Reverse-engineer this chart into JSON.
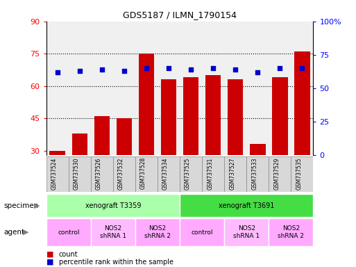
{
  "title": "GDS5187 / ILMN_1790154",
  "samples": [
    "GSM737524",
    "GSM737530",
    "GSM737526",
    "GSM737532",
    "GSM737528",
    "GSM737534",
    "GSM737525",
    "GSM737531",
    "GSM737527",
    "GSM737533",
    "GSM737529",
    "GSM737535"
  ],
  "counts": [
    30,
    38,
    46,
    45,
    75,
    63,
    64,
    65,
    63,
    33,
    64,
    76
  ],
  "percentiles": [
    62,
    63,
    64,
    63,
    65,
    65,
    64,
    65,
    64,
    62,
    65,
    65
  ],
  "ylim_left": [
    28,
    90
  ],
  "ylim_right": [
    0,
    100
  ],
  "yticks_left": [
    30,
    45,
    60,
    75,
    90
  ],
  "yticks_right": [
    0,
    25,
    50,
    75,
    100
  ],
  "yticklabels_right": [
    "0",
    "25",
    "50",
    "75",
    "100%"
  ],
  "bar_color": "#cc0000",
  "dot_color": "#0000cc",
  "plot_bg": "#f0f0f0",
  "specimen_groups": [
    {
      "label": "xenograft T3359",
      "start": 0,
      "end": 6,
      "color": "#aaffaa"
    },
    {
      "label": "xenograft T3691",
      "start": 6,
      "end": 12,
      "color": "#44dd44"
    }
  ],
  "agent_groups": [
    {
      "label": "control",
      "start": 0,
      "end": 2,
      "color": "#ffaaff"
    },
    {
      "label": "NOS2\nshRNA 1",
      "start": 2,
      "end": 4,
      "color": "#ffbbff"
    },
    {
      "label": "NOS2\nshRNA 2",
      "start": 4,
      "end": 6,
      "color": "#ffaaff"
    },
    {
      "label": "control",
      "start": 6,
      "end": 8,
      "color": "#ffaaff"
    },
    {
      "label": "NOS2\nshRNA 1",
      "start": 8,
      "end": 10,
      "color": "#ffbbff"
    },
    {
      "label": "NOS2\nshRNA 2",
      "start": 10,
      "end": 12,
      "color": "#ffaaff"
    }
  ]
}
